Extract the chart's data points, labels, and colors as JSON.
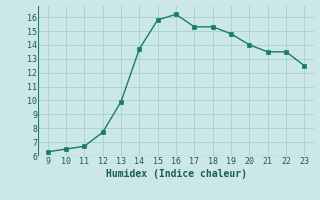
{
  "x": [
    9,
    10,
    11,
    12,
    13,
    14,
    15,
    16,
    17,
    18,
    19,
    20,
    21,
    22,
    23
  ],
  "y": [
    6.3,
    6.5,
    6.7,
    7.7,
    9.9,
    13.7,
    15.8,
    16.2,
    15.3,
    15.3,
    14.8,
    14.0,
    13.5,
    13.5,
    12.5
  ],
  "xlabel": "Humidex (Indice chaleur)",
  "xlim": [
    8.5,
    23.5
  ],
  "ylim": [
    6,
    16.8
  ],
  "xticks": [
    9,
    10,
    11,
    12,
    13,
    14,
    15,
    16,
    17,
    18,
    19,
    20,
    21,
    22,
    23
  ],
  "yticks": [
    6,
    7,
    8,
    9,
    10,
    11,
    12,
    13,
    14,
    15,
    16
  ],
  "line_color": "#1a7a6e",
  "bg_color": "#cce8e6",
  "grid_color": "#aad4d0"
}
